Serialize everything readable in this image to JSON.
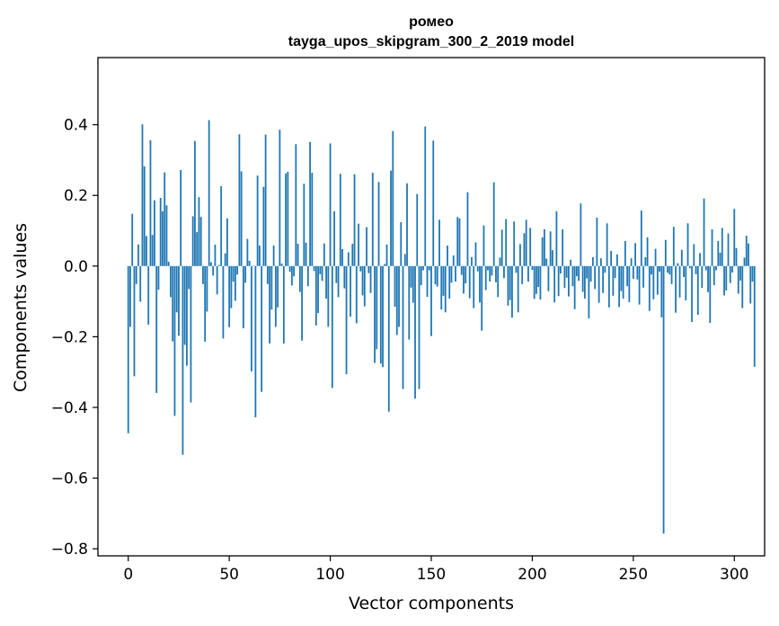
{
  "chart_data": {
    "type": "bar",
    "title": "ромео",
    "subtitle": "tayga_upos_skipgram_300_2_2019 model",
    "xlabel": "Vector components",
    "ylabel": "Components values",
    "xlim": [
      -15,
      315
    ],
    "ylim": [
      -0.82,
      0.59
    ],
    "xticks": [
      0,
      50,
      100,
      150,
      200,
      250,
      300
    ],
    "yticks": [
      -0.8,
      -0.6,
      -0.4,
      -0.2,
      0.0,
      0.2,
      0.4
    ],
    "ytick_labels": [
      "−0.8",
      "−0.6",
      "−0.4",
      "−0.2",
      "0.0",
      "0.2",
      "0.4"
    ],
    "bar_color": "#1f77b4",
    "values": [
      -0.473,
      -0.172,
      0.148,
      -0.312,
      -0.051,
      0.061,
      -0.101,
      0.401,
      0.282,
      0.085,
      -0.166,
      0.356,
      0.088,
      0.186,
      -0.359,
      -0.067,
      0.193,
      0.155,
      0.265,
      0.172,
      0.012,
      -0.088,
      -0.213,
      -0.424,
      -0.131,
      -0.197,
      0.272,
      -0.534,
      -0.223,
      -0.282,
      -0.065,
      -0.386,
      0.141,
      0.354,
      0.096,
      0.195,
      0.139,
      -0.051,
      -0.214,
      -0.129,
      0.413,
      0.011,
      -0.027,
      0.061,
      -0.08,
      0.003,
      0.226,
      -0.205,
      0.036,
      0.135,
      -0.173,
      -0.119,
      -0.044,
      -0.098,
      -0.024,
      0.373,
      0.268,
      -0.176,
      -0.047,
      0.077,
      0.015,
      -0.298,
      0.001,
      -0.428,
      0.256,
      0.058,
      -0.356,
      0.224,
      0.372,
      -0.051,
      -0.219,
      -0.123,
      0.058,
      -0.172,
      -0.117,
      0.386,
      0.007,
      -0.219,
      0.262,
      0.267,
      -0.016,
      -0.055,
      -0.029,
      0.345,
      0.063,
      -0.073,
      -0.211,
      0.233,
      0.066,
      -0.057,
      0.351,
      0.264,
      -0.014,
      -0.168,
      -0.133,
      -0.023,
      -0.042,
      0.064,
      -0.092,
      -0.172,
      0.347,
      -0.345,
      0.155,
      -0.048,
      -0.088,
      0.261,
      0.048,
      -0.063,
      -0.306,
      0.039,
      -0.143,
      0.063,
      0.26,
      -0.162,
      0.12,
      -0.015,
      -0.083,
      -0.114,
      0.11,
      -0.02,
      -0.076,
      0.264,
      -0.274,
      -0.235,
      0.238,
      -0.276,
      -0.286,
      0.006,
      0.061,
      -0.412,
      0.27,
      0.382,
      -0.115,
      -0.195,
      -0.172,
      0.124,
      -0.348,
      0.034,
      0.234,
      -0.208,
      -0.061,
      -0.104,
      -0.375,
      0.204,
      -0.348,
      -0.054,
      -0.012,
      0.395,
      -0.087,
      -0.012,
      -0.198,
      0.355,
      -0.052,
      -0.058,
      0.131,
      -0.123,
      -0.084,
      -0.131,
      0.058,
      -0.092,
      -0.047,
      0.03,
      -0.044,
      0.139,
      0.135,
      -0.025,
      -0.078,
      -0.049,
      0.209,
      -0.091,
      0.025,
      -0.119,
      0.067,
      -0.015,
      -0.103,
      -0.183,
      0.115,
      -0.068,
      -0.012,
      -0.044,
      -0.027,
      0.237,
      -0.046,
      -0.088,
      0.024,
      0.103,
      -0.034,
      0.133,
      -0.112,
      -0.096,
      -0.146,
      0.126,
      -0.019,
      -0.131,
      0.062,
      -0.051,
      0.093,
      0.131,
      -0.044,
      0.108,
      -0.011,
      -0.093,
      -0.079,
      -0.059,
      -0.095,
      0.081,
      0.104,
      0.021,
      -0.071,
      0.098,
      0.045,
      -0.103,
      0.155,
      -0.085,
      -0.021,
      0.104,
      -0.062,
      -0.033,
      -0.086,
      0.018,
      -0.057,
      -0.122,
      -0.029,
      -0.042,
      0.177,
      -0.073,
      -0.092,
      -0.035,
      -0.148,
      -0.044,
      0.025,
      -0.065,
      0.137,
      -0.104,
      0.022,
      -0.076,
      -0.019,
      0.121,
      -0.117,
      0.043,
      -0.084,
      -0.034,
      0.033,
      -0.116,
      -0.071,
      -0.092,
      0.071,
      -0.057,
      -0.102,
      0.022,
      -0.036,
      0.065,
      -0.038,
      -0.109,
      0.157,
      -0.061,
      0.025,
      0.081,
      -0.127,
      -0.024,
      -0.094,
      0.049,
      -0.081,
      -0.016,
      -0.145,
      -0.757,
      0.074,
      -0.019,
      -0.024,
      -0.051,
      0.111,
      -0.132,
      0.008,
      -0.089,
      0.046,
      -0.031,
      -0.097,
      0.121,
      -0.006,
      -0.158,
      0.062,
      -0.023,
      -0.138,
      0.037,
      -0.062,
      0.191,
      -0.012,
      -0.074,
      -0.161,
      0.104,
      -0.054,
      -0.012,
      0.071,
      0.038,
      0.108,
      -0.083,
      -0.069,
      0.092,
      -0.048,
      -0.018,
      0.162,
      0.051,
      -0.078,
      -0.041,
      -0.119,
      0.024,
      0.086,
      0.064,
      -0.106,
      -0.044,
      -0.285
    ]
  }
}
